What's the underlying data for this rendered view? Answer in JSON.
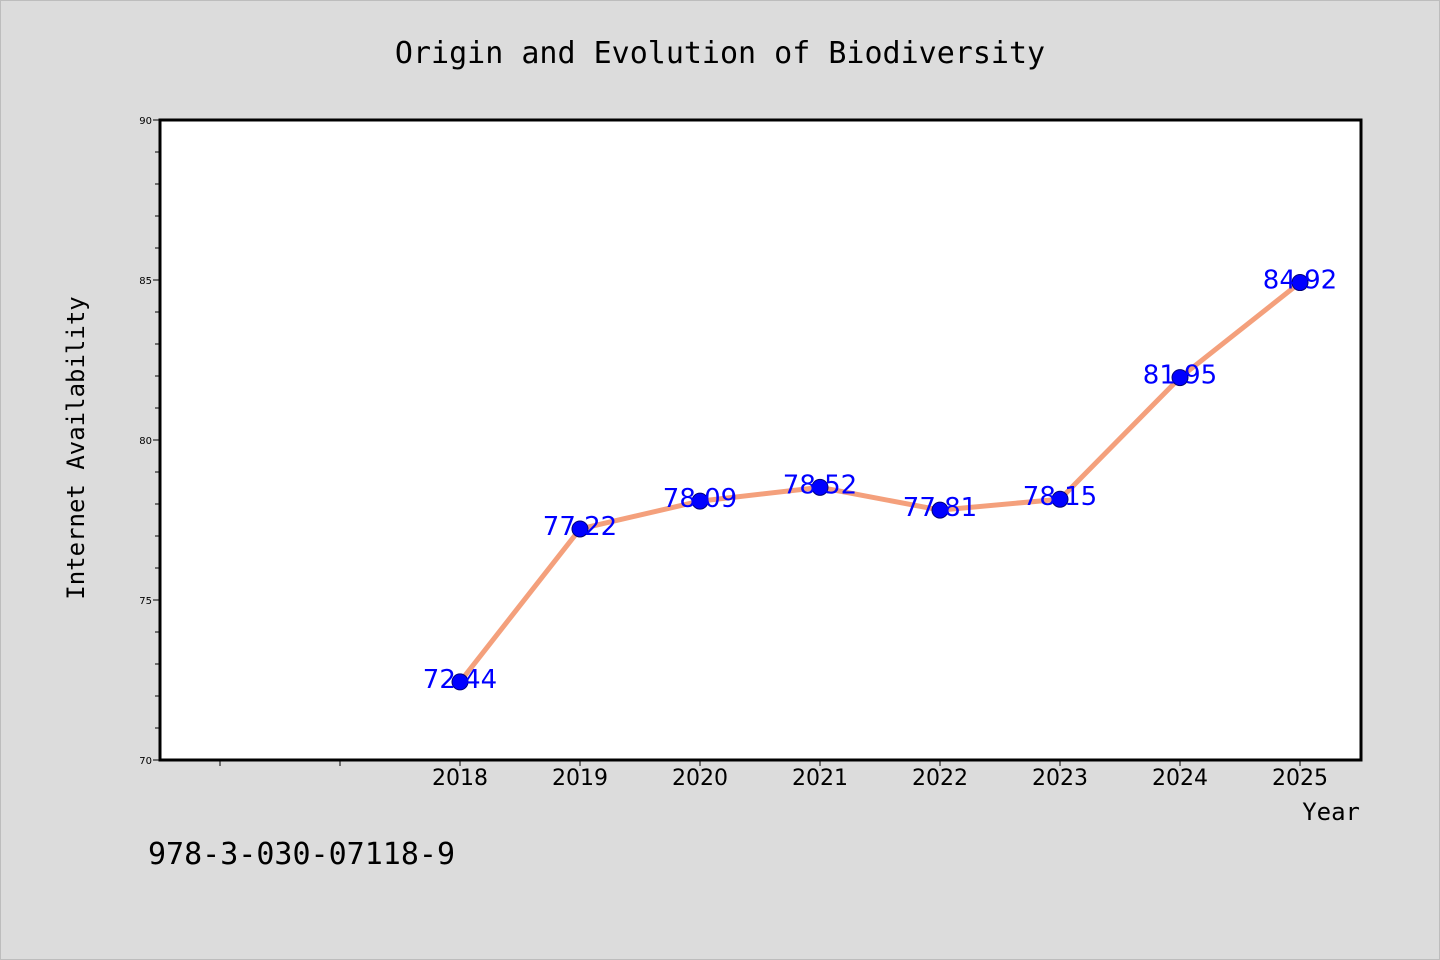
{
  "chart_data": {
    "type": "line",
    "title": "Origin and Evolution of Biodiversity",
    "xlabel": "Year",
    "ylabel": "Internet Availability",
    "categories": [
      "2018",
      "2019",
      "2020",
      "2021",
      "2022",
      "2023",
      "2024",
      "2025"
    ],
    "series": [
      {
        "values": [
          72.44,
          77.22,
          78.09,
          78.52,
          77.81,
          78.15,
          81.95,
          84.92
        ],
        "labels": [
          "72.44",
          "77.22",
          "78.09",
          "78.52",
          "77.81",
          "78.15",
          "81.95",
          "84.92"
        ]
      }
    ],
    "ylim": [
      70,
      90
    ],
    "yticks": [
      "70",
      "75",
      "80",
      "85",
      "90"
    ],
    "grid": false,
    "legend": "none",
    "colors": {
      "line": "#f4a07c",
      "marker": "#0000ff",
      "marker_edge": "#00007a",
      "data_label": "#0000ff",
      "background": "#dcdcdc",
      "plot_background": "#ffffff"
    }
  },
  "footer_text": "978-3-030-07118-9"
}
